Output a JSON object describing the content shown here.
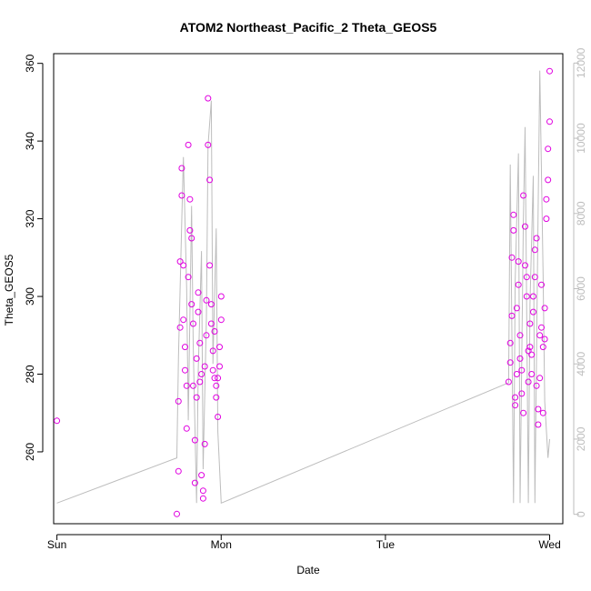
{
  "chart_data": {
    "type": "scatter",
    "title": "ATOM2 Northeast_Pacific_2 Theta_GEOS5",
    "xlabel": "Date",
    "ylabel": "Theta_GEOS5",
    "x_ticks": [
      {
        "label": "Sun",
        "day": 0
      },
      {
        "label": "Mon",
        "day": 1
      },
      {
        "label": "Tue",
        "day": 2
      },
      {
        "label": "Wed",
        "day": 3
      }
    ],
    "xlim": [
      -0.02,
      3.08
    ],
    "ylim": [
      241.5,
      362.5
    ],
    "y_ticks": [
      260,
      280,
      300,
      320,
      340,
      360
    ],
    "y2_label": "",
    "y2lim": [
      -250,
      12250
    ],
    "y2_ticks": [
      0,
      2000,
      4000,
      6000,
      8000,
      10000,
      12000
    ],
    "colors": {
      "points": "#e000e0",
      "line": "#bdbdbd",
      "axis": "#000000",
      "right_axis": "#bdbdbd"
    },
    "series": [
      {
        "kind": "points",
        "x": [
          0.0,
          0.73,
          0.74,
          0.74,
          0.75,
          0.75,
          0.76,
          0.76,
          0.77,
          0.77,
          0.78,
          0.78,
          0.79,
          0.79,
          0.8,
          0.8,
          0.81,
          0.81,
          0.82,
          0.82,
          0.83,
          0.83,
          0.84,
          0.84,
          0.85,
          0.85,
          0.86,
          0.86,
          0.87,
          0.87,
          0.88,
          0.88,
          0.89,
          0.89,
          0.9,
          0.9,
          0.91,
          0.91,
          0.92,
          0.92,
          0.93,
          0.93,
          0.94,
          0.94,
          0.95,
          0.95,
          0.96,
          0.96,
          0.97,
          0.97,
          0.98,
          0.98,
          0.99,
          0.99,
          1.0,
          1.0,
          2.75,
          2.76,
          2.76,
          2.77,
          2.77,
          2.78,
          2.78,
          2.79,
          2.79,
          2.8,
          2.8,
          2.81,
          2.81,
          2.82,
          2.82,
          2.83,
          2.83,
          2.84,
          2.84,
          2.85,
          2.85,
          2.86,
          2.86,
          2.87,
          2.87,
          2.88,
          2.88,
          2.89,
          2.89,
          2.9,
          2.9,
          2.91,
          2.91,
          2.92,
          2.92,
          2.93,
          2.93,
          2.94,
          2.94,
          2.95,
          2.95,
          2.96,
          2.96,
          2.97,
          2.97,
          2.98,
          2.98,
          2.99,
          2.99,
          3.0,
          3.0
        ],
        "y": [
          268,
          244,
          255,
          273,
          292,
          309,
          326,
          333,
          308,
          294,
          287,
          281,
          266,
          277,
          305,
          339,
          325,
          317,
          315,
          298,
          293,
          277,
          263,
          252,
          274,
          284,
          296,
          301,
          288,
          278,
          280,
          254,
          250,
          248,
          262,
          282,
          290,
          299,
          339,
          351,
          330,
          308,
          298,
          293,
          286,
          281,
          279,
          291,
          274,
          277,
          279,
          269,
          282,
          287,
          294,
          300,
          278,
          283,
          288,
          295,
          310,
          321,
          317,
          272,
          274,
          280,
          297,
          303,
          309,
          290,
          284,
          281,
          275,
          270,
          326,
          318,
          308,
          305,
          300,
          286,
          278,
          293,
          287,
          280,
          285,
          296,
          300,
          305,
          312,
          315,
          277,
          271,
          267,
          290,
          279,
          292,
          303,
          287,
          270,
          289,
          297,
          320,
          325,
          330,
          338,
          345,
          358
        ]
      },
      {
        "kind": "line",
        "x": [
          0.0,
          0.73,
          0.74,
          0.76,
          0.77,
          0.79,
          0.8,
          0.82,
          0.83,
          0.85,
          0.86,
          0.88,
          0.89,
          0.91,
          0.92,
          0.94,
          0.95,
          0.97,
          0.98,
          1.0,
          2.75,
          2.76,
          2.78,
          2.79,
          2.81,
          2.82,
          2.84,
          2.85,
          2.87,
          2.88,
          2.9,
          2.91,
          2.93,
          2.94,
          2.96,
          2.97,
          2.99,
          3.0
        ],
        "y2": [
          300,
          1500,
          4200,
          7800,
          9500,
          6000,
          2500,
          8200,
          4500,
          300,
          3800,
          7000,
          1200,
          5200,
          9800,
          11000,
          4000,
          7600,
          2200,
          300,
          3500,
          9300,
          300,
          6200,
          9600,
          300,
          7800,
          10300,
          300,
          5600,
          9000,
          300,
          8200,
          11800,
          6400,
          3000,
          1500,
          2000
        ]
      }
    ]
  }
}
